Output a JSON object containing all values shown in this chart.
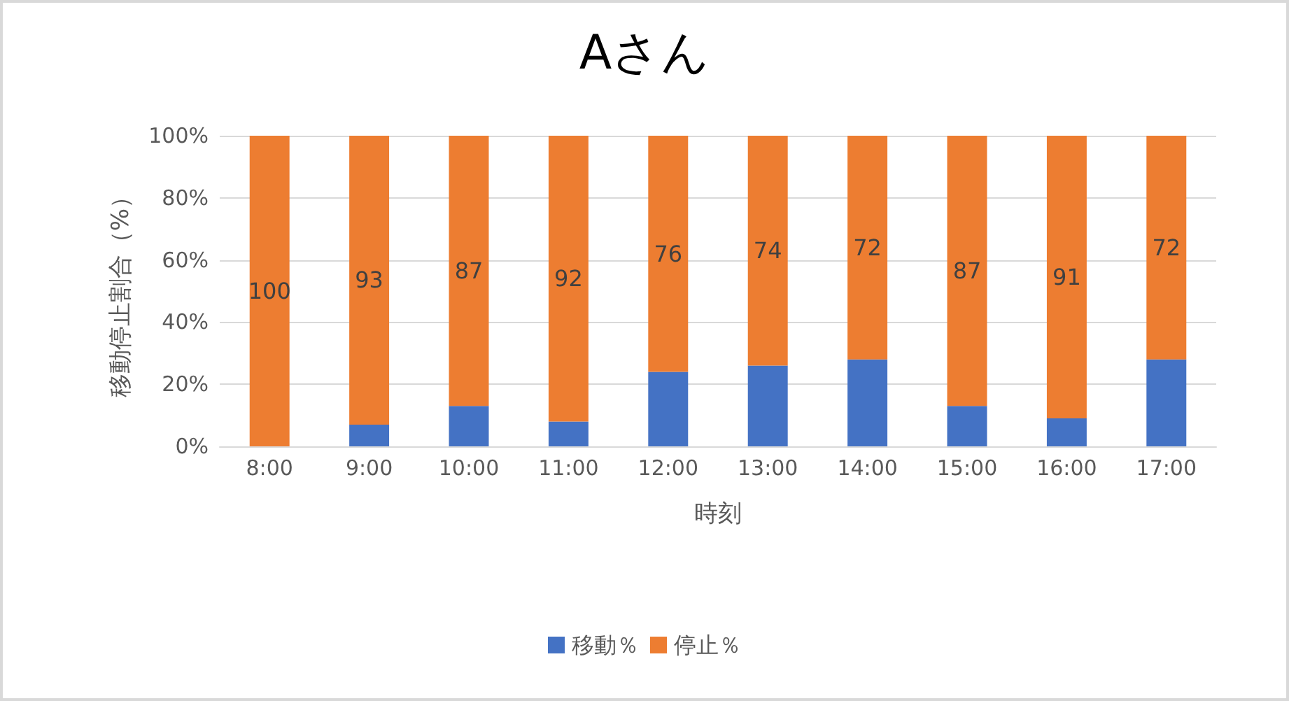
{
  "chart_data": {
    "type": "bar",
    "title": "Aさん",
    "xlabel": "時刻",
    "ylabel": "移動停止割合（%）",
    "categories": [
      "8:00",
      "9:00",
      "10:00",
      "11:00",
      "12:00",
      "13:00",
      "14:00",
      "15:00",
      "16:00",
      "17:00"
    ],
    "stacked": true,
    "series": [
      {
        "name": "移動％",
        "color": "#4472c4",
        "values": [
          0,
          7,
          13,
          8,
          24,
          26,
          28,
          13,
          9,
          28
        ]
      },
      {
        "name": "停止％",
        "color": "#ed7d31",
        "values": [
          100,
          93,
          87,
          92,
          76,
          74,
          72,
          87,
          91,
          72
        ],
        "value_labels": [
          "100",
          "93",
          "87",
          "92",
          "76",
          "74",
          "72",
          "87",
          "91",
          "72"
        ]
      }
    ],
    "ylim": [
      0,
      100
    ],
    "yticks": [
      {
        "value": 0,
        "label": "0%"
      },
      {
        "value": 20,
        "label": "20%"
      },
      {
        "value": 40,
        "label": "40%"
      },
      {
        "value": 60,
        "label": "60%"
      },
      {
        "value": 80,
        "label": "80%"
      },
      {
        "value": 100,
        "label": "100%"
      }
    ],
    "grid": "y",
    "legend": "bottom"
  }
}
